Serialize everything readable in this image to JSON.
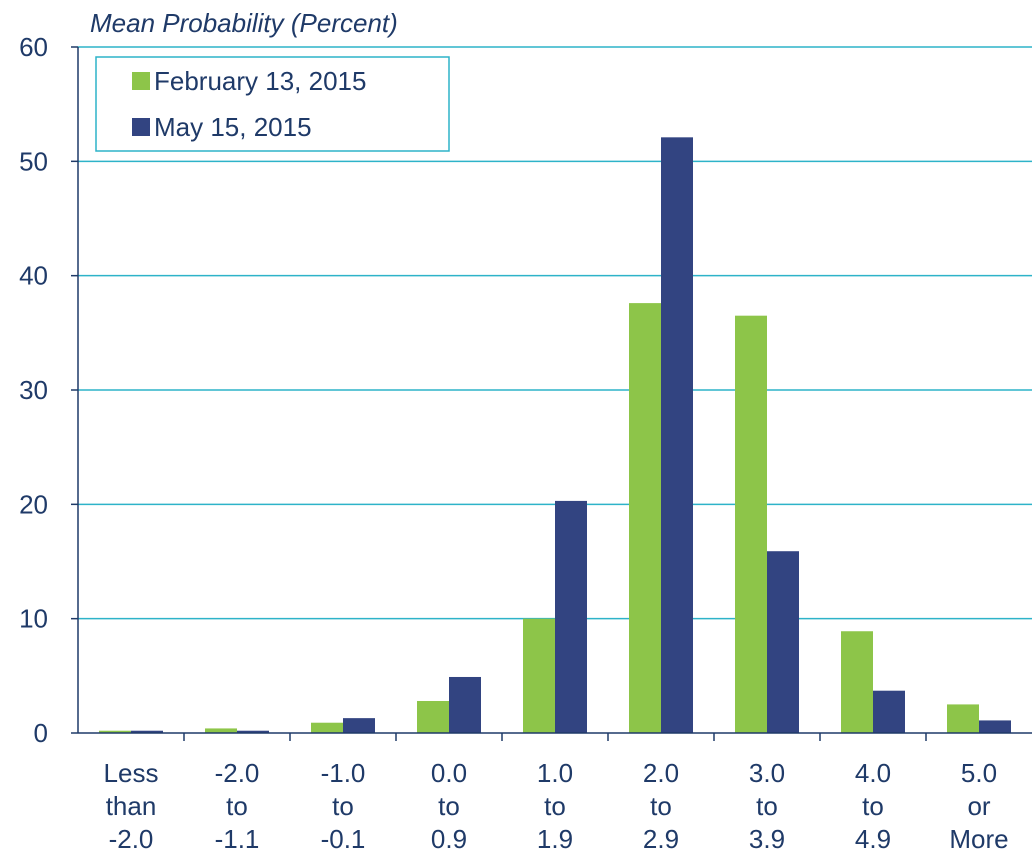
{
  "chart_data": {
    "type": "bar",
    "ylabel": "Mean Probability (Percent)",
    "ylim": [
      0,
      60
    ],
    "yticks": [
      0,
      10,
      20,
      30,
      40,
      50,
      60
    ],
    "grid": true,
    "legend_position": "top-left",
    "categories": [
      [
        "Less",
        "than",
        "-2.0"
      ],
      [
        "-2.0",
        "to",
        "-1.1"
      ],
      [
        "-1.0",
        "to",
        "-0.1"
      ],
      [
        "0.0",
        "to",
        "0.9"
      ],
      [
        "1.0",
        "to",
        "1.9"
      ],
      [
        "2.0",
        "to",
        "2.9"
      ],
      [
        "3.0",
        "to",
        "3.9"
      ],
      [
        "4.0",
        "to",
        "4.9"
      ],
      [
        "5.0",
        "or",
        "More"
      ]
    ],
    "series": [
      {
        "name": "February 13, 2015",
        "color": "#8dc549",
        "values": [
          0.2,
          0.4,
          0.9,
          2.8,
          10.0,
          37.6,
          36.5,
          8.9,
          2.5
        ]
      },
      {
        "name": "May 15, 2015",
        "color": "#324481",
        "values": [
          0.2,
          0.2,
          1.3,
          4.9,
          20.3,
          52.1,
          15.9,
          3.7,
          1.1
        ]
      }
    ],
    "colors": {
      "grid": "#2db3c9",
      "axis": "#1f3a68",
      "text": "#1f3a68"
    }
  }
}
